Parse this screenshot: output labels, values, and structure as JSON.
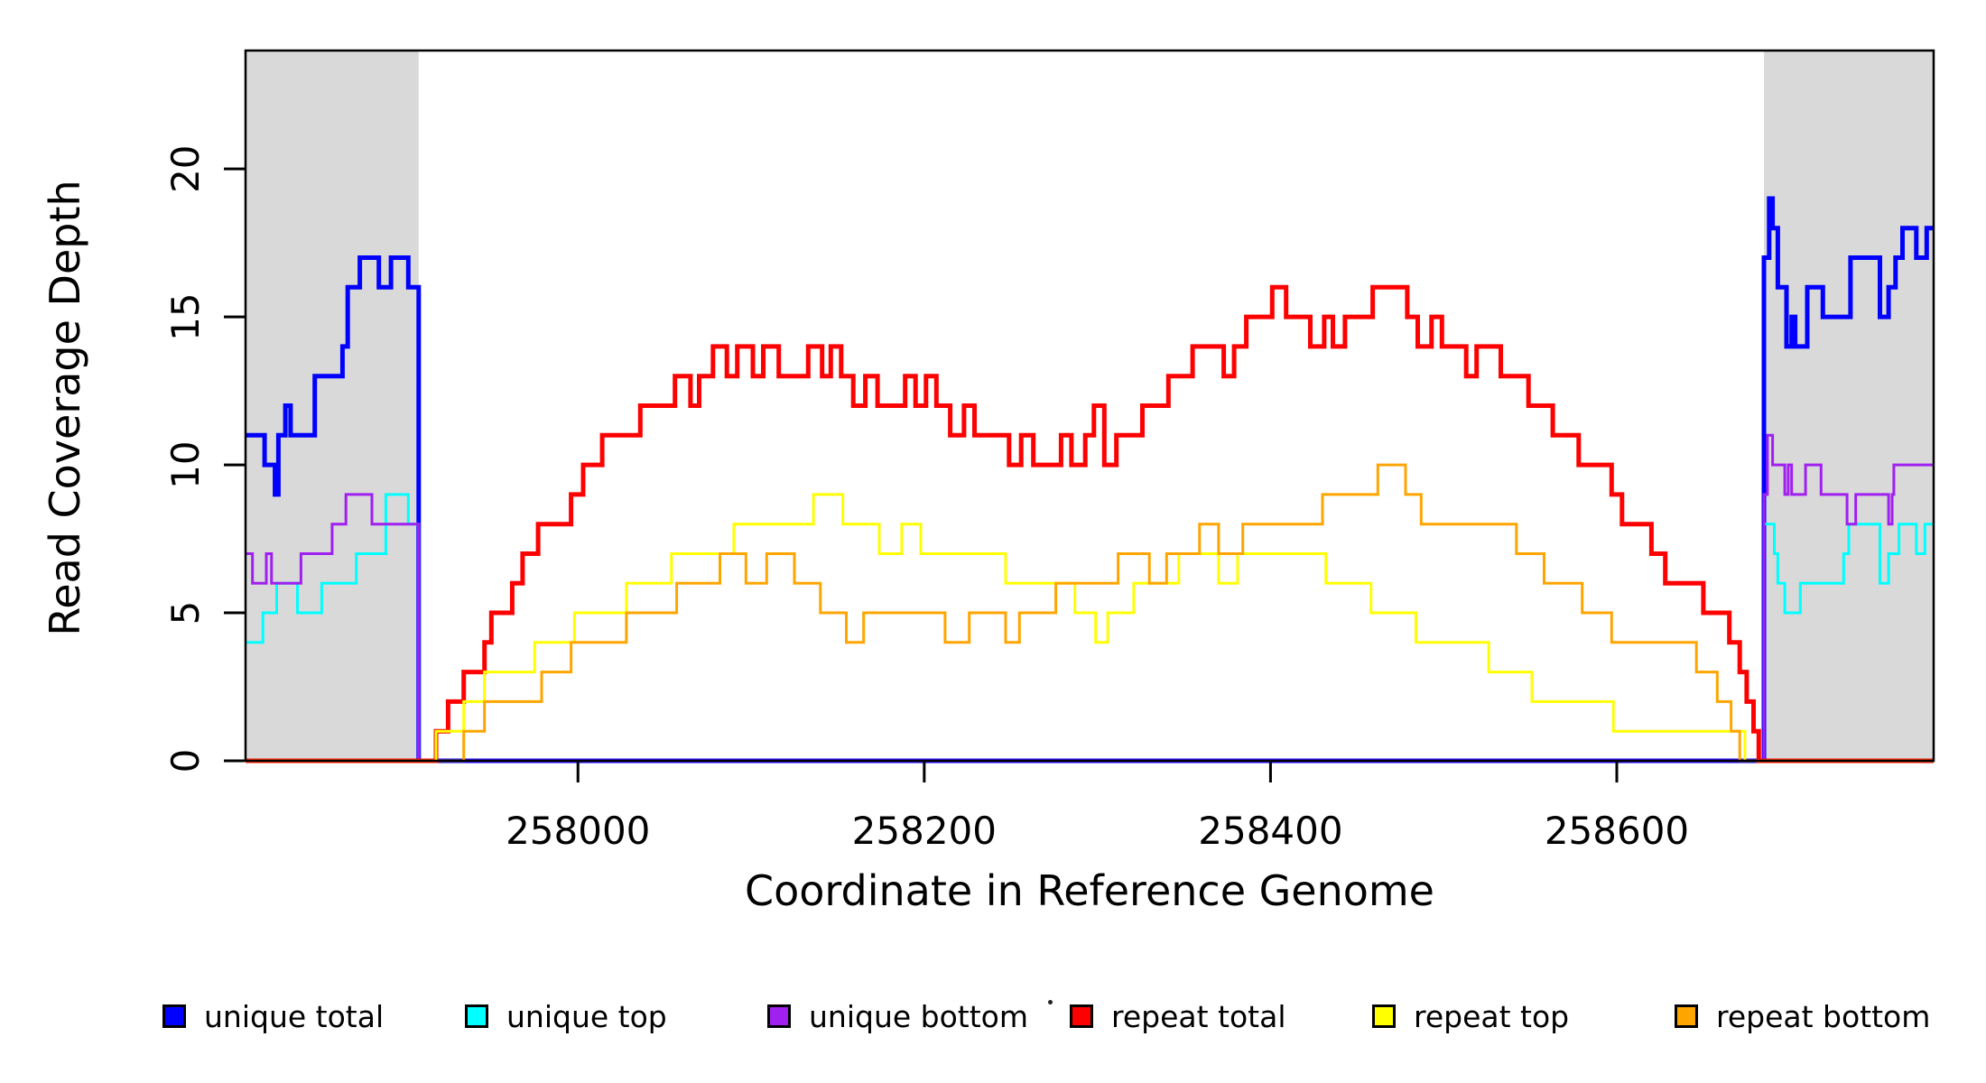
{
  "figure": {
    "y_axis_title": "Read Coverage Depth",
    "x_axis_title": "Coordinate in Reference Genome",
    "stray_mark": "."
  },
  "legend": {
    "position": "bottom",
    "items": [
      {
        "key": "unique-total",
        "label": "unique total",
        "color": "#0000FF"
      },
      {
        "key": "unique-top",
        "label": "unique top",
        "color": "#00FFFF"
      },
      {
        "key": "unique-bottom",
        "label": "unique bottom",
        "color": "#A020F0"
      },
      {
        "key": "repeat-total",
        "label": "repeat total",
        "color": "#FF0000"
      },
      {
        "key": "repeat-top",
        "label": "repeat top",
        "color": "#FFFF00"
      },
      {
        "key": "repeat-bottom",
        "label": "repeat bottom",
        "color": "#FFA500"
      }
    ],
    "item_offsets": [
      180,
      515,
      850,
      1185,
      1520,
      1855
    ]
  },
  "chart_data": {
    "type": "line",
    "step": true,
    "title": "",
    "xlabel": "Coordinate in Reference Genome",
    "ylabel": "Read Coverage Depth",
    "grid": false,
    "legend_position": "bottom",
    "xlim": [
      257808,
      258783
    ],
    "ylim": [
      0,
      24
    ],
    "x_ticks": [
      258000,
      258200,
      258400,
      258600
    ],
    "y_ticks": [
      0,
      5,
      10,
      15,
      20
    ],
    "shaded_regions": [
      {
        "x0": 257808,
        "x1": 257908,
        "color": "#d9d9d9"
      },
      {
        "x0": 258685,
        "x1": 258783,
        "color": "#d9d9d9"
      }
    ],
    "series": [
      {
        "key": "unique-total",
        "name": "unique total",
        "color": "#0000FF",
        "line_width": 5,
        "points": [
          [
            257808,
            11
          ],
          [
            257819,
            10
          ],
          [
            257825,
            9
          ],
          [
            257827,
            11
          ],
          [
            257831,
            12
          ],
          [
            257834,
            11
          ],
          [
            257848,
            13
          ],
          [
            257864,
            14
          ],
          [
            257867,
            16
          ],
          [
            257874,
            17
          ],
          [
            257885,
            16
          ],
          [
            257892,
            17
          ],
          [
            257902,
            16
          ],
          [
            257908,
            0
          ],
          [
            258685,
            17
          ],
          [
            258688,
            19
          ],
          [
            258690,
            18
          ],
          [
            258693,
            16
          ],
          [
            258698,
            14
          ],
          [
            258701,
            15
          ],
          [
            258703,
            14
          ],
          [
            258710,
            16
          ],
          [
            258719,
            15
          ],
          [
            258735,
            17
          ],
          [
            258752,
            15
          ],
          [
            258757,
            16
          ],
          [
            258761,
            17
          ],
          [
            258765,
            18
          ],
          [
            258773,
            17
          ],
          [
            258779,
            18
          ]
        ]
      },
      {
        "key": "unique-top",
        "name": "unique top",
        "color": "#00FFFF",
        "line_width": 3,
        "points": [
          [
            257808,
            4
          ],
          [
            257818,
            5
          ],
          [
            257826,
            6
          ],
          [
            257838,
            5
          ],
          [
            257852,
            6
          ],
          [
            257872,
            7
          ],
          [
            257889,
            9
          ],
          [
            257902,
            8
          ],
          [
            257908,
            0
          ],
          [
            258685,
            8
          ],
          [
            258691,
            7
          ],
          [
            258693,
            6
          ],
          [
            258697,
            5
          ],
          [
            258706,
            6
          ],
          [
            258731,
            7
          ],
          [
            258734,
            8
          ],
          [
            258752,
            6
          ],
          [
            258757,
            7
          ],
          [
            258763,
            8
          ],
          [
            258773,
            7
          ],
          [
            258778,
            8
          ]
        ]
      },
      {
        "key": "unique-bottom",
        "name": "unique bottom",
        "color": "#A020F0",
        "line_width": 3,
        "points": [
          [
            257808,
            7
          ],
          [
            257812,
            6
          ],
          [
            257820,
            7
          ],
          [
            257823,
            6
          ],
          [
            257840,
            7
          ],
          [
            257858,
            8
          ],
          [
            257866,
            9
          ],
          [
            257881,
            8
          ],
          [
            257908,
            0
          ],
          [
            258685,
            9
          ],
          [
            258687,
            11
          ],
          [
            258690,
            10
          ],
          [
            258697,
            9
          ],
          [
            258699,
            10
          ],
          [
            258701,
            9
          ],
          [
            258709,
            10
          ],
          [
            258718,
            9
          ],
          [
            258733,
            8
          ],
          [
            258738,
            9
          ],
          [
            258757,
            8
          ],
          [
            258759,
            9
          ],
          [
            258760,
            10
          ]
        ]
      },
      {
        "key": "repeat-total",
        "name": "repeat total",
        "color": "#FF0000",
        "line_width": 5,
        "points": [
          [
            257808,
            0
          ],
          [
            257918,
            1
          ],
          [
            257925,
            2
          ],
          [
            257934,
            3
          ],
          [
            257946,
            4
          ],
          [
            257950,
            5
          ],
          [
            257962,
            6
          ],
          [
            257968,
            7
          ],
          [
            257977,
            8
          ],
          [
            257996,
            9
          ],
          [
            258003,
            10
          ],
          [
            258014,
            11
          ],
          [
            258036,
            12
          ],
          [
            258056,
            13
          ],
          [
            258065,
            12
          ],
          [
            258070,
            13
          ],
          [
            258078,
            14
          ],
          [
            258086,
            13
          ],
          [
            258092,
            14
          ],
          [
            258101,
            13
          ],
          [
            258107,
            14
          ],
          [
            258116,
            13
          ],
          [
            258133,
            14
          ],
          [
            258141,
            13
          ],
          [
            258146,
            14
          ],
          [
            258152,
            13
          ],
          [
            258159,
            12
          ],
          [
            258166,
            13
          ],
          [
            258173,
            12
          ],
          [
            258189,
            13
          ],
          [
            258195,
            12
          ],
          [
            258201,
            13
          ],
          [
            258207,
            12
          ],
          [
            258215,
            11
          ],
          [
            258223,
            12
          ],
          [
            258229,
            11
          ],
          [
            258249,
            10
          ],
          [
            258256,
            11
          ],
          [
            258263,
            10
          ],
          [
            258279,
            11
          ],
          [
            258285,
            10
          ],
          [
            258293,
            11
          ],
          [
            258298,
            12
          ],
          [
            258304,
            10
          ],
          [
            258311,
            11
          ],
          [
            258326,
            12
          ],
          [
            258341,
            13
          ],
          [
            258355,
            14
          ],
          [
            258373,
            13
          ],
          [
            258379,
            14
          ],
          [
            258386,
            15
          ],
          [
            258401,
            16
          ],
          [
            258409,
            15
          ],
          [
            258423,
            14
          ],
          [
            258431,
            15
          ],
          [
            258436,
            14
          ],
          [
            258443,
            15
          ],
          [
            258459,
            16
          ],
          [
            258479,
            15
          ],
          [
            258485,
            14
          ],
          [
            258493,
            15
          ],
          [
            258499,
            14
          ],
          [
            258513,
            13
          ],
          [
            258519,
            14
          ],
          [
            258533,
            13
          ],
          [
            258549,
            12
          ],
          [
            258563,
            11
          ],
          [
            258578,
            10
          ],
          [
            258597,
            9
          ],
          [
            258603,
            8
          ],
          [
            258620,
            7
          ],
          [
            258628,
            6
          ],
          [
            258650,
            5
          ],
          [
            258665,
            4
          ],
          [
            258671,
            3
          ],
          [
            258675,
            2
          ],
          [
            258679,
            1
          ],
          [
            258682,
            0
          ]
        ]
      },
      {
        "key": "repeat-top",
        "name": "repeat top",
        "color": "#FFFF00",
        "line_width": 3,
        "points": [
          [
            257808,
            0
          ],
          [
            257918,
            1
          ],
          [
            257934,
            2
          ],
          [
            257946,
            3
          ],
          [
            257975,
            4
          ],
          [
            257998,
            5
          ],
          [
            258028,
            6
          ],
          [
            258054,
            7
          ],
          [
            258090,
            8
          ],
          [
            258125,
            8
          ],
          [
            258136,
            9
          ],
          [
            258153,
            8
          ],
          [
            258174,
            7
          ],
          [
            258187,
            8
          ],
          [
            258198,
            7
          ],
          [
            258232,
            7
          ],
          [
            258247,
            6
          ],
          [
            258272,
            6
          ],
          [
            258287,
            5
          ],
          [
            258299,
            4
          ],
          [
            258306,
            5
          ],
          [
            258321,
            6
          ],
          [
            258347,
            7
          ],
          [
            258370,
            6
          ],
          [
            258381,
            7
          ],
          [
            258420,
            7
          ],
          [
            258432,
            6
          ],
          [
            258458,
            5
          ],
          [
            258484,
            4
          ],
          [
            258500,
            4
          ],
          [
            258526,
            3
          ],
          [
            258551,
            2
          ],
          [
            258582,
            2
          ],
          [
            258598,
            1
          ],
          [
            258640,
            1
          ],
          [
            258666,
            1
          ],
          [
            258674,
            0
          ]
        ]
      },
      {
        "key": "repeat-bottom",
        "name": "repeat bottom",
        "color": "#FFA500",
        "line_width": 3,
        "points": [
          [
            257808,
            0
          ],
          [
            257934,
            1
          ],
          [
            257946,
            2
          ],
          [
            257979,
            3
          ],
          [
            257996,
            4
          ],
          [
            258028,
            5
          ],
          [
            258057,
            6
          ],
          [
            258082,
            7
          ],
          [
            258097,
            6
          ],
          [
            258109,
            7
          ],
          [
            258125,
            6
          ],
          [
            258140,
            5
          ],
          [
            258155,
            4
          ],
          [
            258165,
            5
          ],
          [
            258200,
            5
          ],
          [
            258212,
            4
          ],
          [
            258226,
            5
          ],
          [
            258247,
            4
          ],
          [
            258255,
            5
          ],
          [
            258276,
            6
          ],
          [
            258302,
            6
          ],
          [
            258312,
            7
          ],
          [
            258330,
            6
          ],
          [
            258340,
            7
          ],
          [
            258359,
            8
          ],
          [
            258370,
            7
          ],
          [
            258384,
            8
          ],
          [
            258417,
            8
          ],
          [
            258430,
            9
          ],
          [
            258448,
            9
          ],
          [
            258462,
            10
          ],
          [
            258478,
            9
          ],
          [
            258487,
            8
          ],
          [
            258510,
            8
          ],
          [
            258536,
            8
          ],
          [
            258542,
            7
          ],
          [
            258558,
            6
          ],
          [
            258572,
            6
          ],
          [
            258580,
            5
          ],
          [
            258597,
            4
          ],
          [
            258640,
            4
          ],
          [
            258646,
            3
          ],
          [
            258658,
            2
          ],
          [
            258666,
            1
          ],
          [
            258671,
            0
          ]
        ]
      }
    ]
  }
}
